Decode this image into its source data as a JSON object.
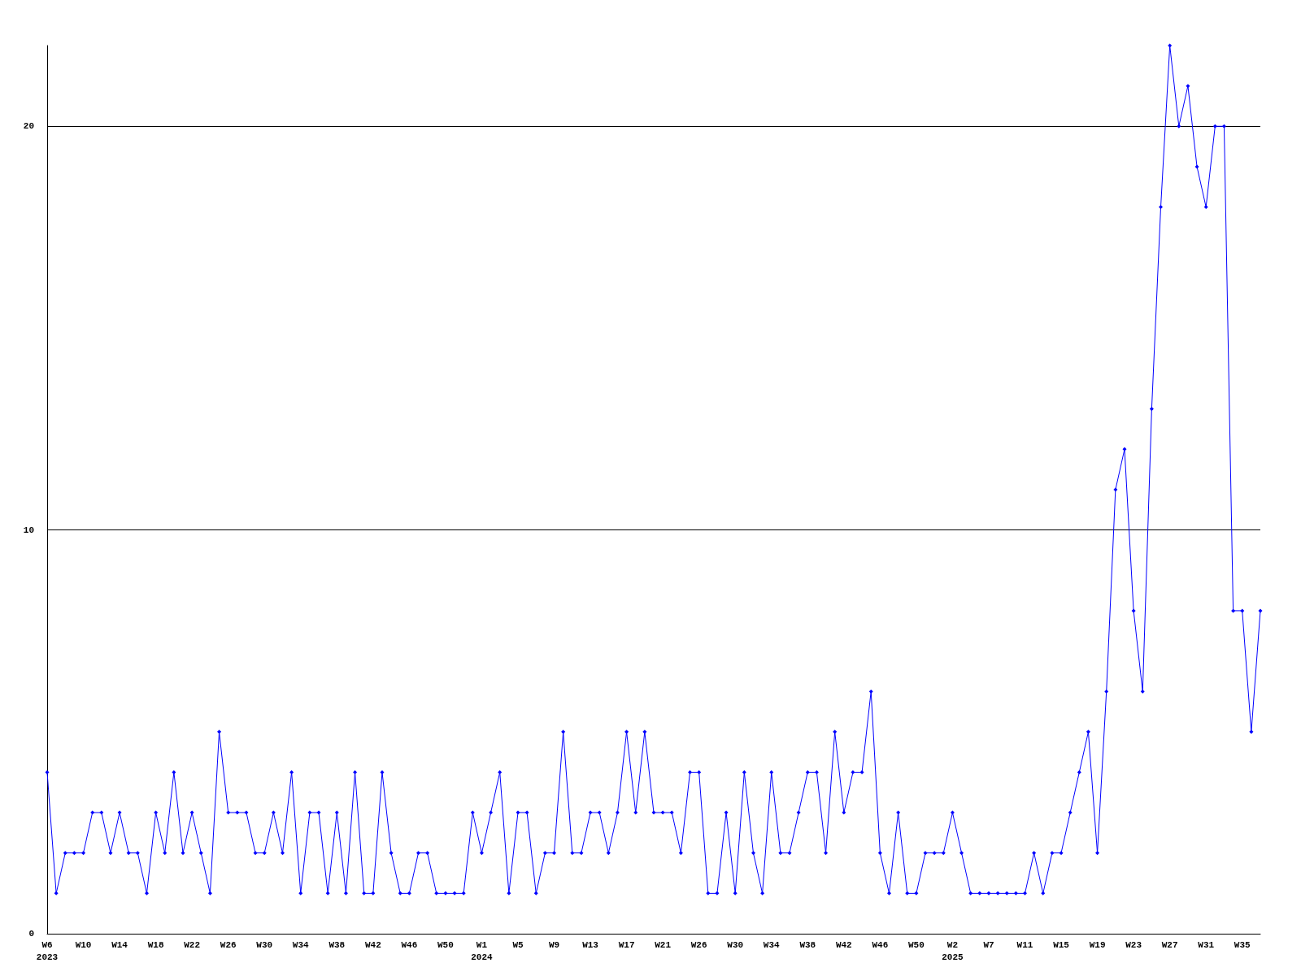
{
  "chart_data": {
    "type": "line",
    "categories": [
      "W6\n2023",
      null,
      null,
      null,
      "W10",
      null,
      null,
      null,
      "W14",
      null,
      null,
      null,
      "W18",
      null,
      null,
      null,
      "W22",
      null,
      null,
      null,
      "W26",
      null,
      null,
      null,
      "W30",
      null,
      null,
      null,
      "W34",
      null,
      null,
      null,
      "W38",
      null,
      null,
      null,
      "W42",
      null,
      null,
      null,
      "W46",
      null,
      null,
      null,
      "W50",
      null,
      null,
      null,
      "W1\n2024",
      null,
      null,
      null,
      "W5",
      null,
      null,
      null,
      "W9",
      null,
      null,
      null,
      "W13",
      null,
      null,
      null,
      "W17",
      null,
      null,
      null,
      "W21",
      null,
      null,
      null,
      "W26",
      null,
      null,
      null,
      "W30",
      null,
      null,
      null,
      "W34",
      null,
      null,
      null,
      "W38",
      null,
      null,
      null,
      "W42",
      null,
      null,
      null,
      "W46",
      null,
      null,
      null,
      "W50",
      null,
      null,
      null,
      "W2\n2025",
      null,
      null,
      null,
      "W7",
      null,
      null,
      null,
      "W11",
      null,
      null,
      null,
      "W15",
      null,
      null,
      null,
      "W19",
      null,
      null,
      null,
      "W23",
      null,
      null,
      null,
      "W27",
      null,
      null,
      null,
      "W31",
      null,
      null,
      null,
      "W35",
      null,
      null
    ],
    "series": [
      {
        "color": "#0000ff",
        "values": [
          4,
          1,
          2,
          2,
          2,
          3,
          3,
          2,
          3,
          2,
          2,
          1,
          3,
          2,
          4,
          2,
          3,
          2,
          1,
          5,
          3,
          3,
          3,
          2,
          2,
          3,
          2,
          4,
          1,
          3,
          3,
          1,
          3,
          1,
          4,
          1,
          1,
          4,
          2,
          1,
          1,
          2,
          2,
          1,
          1,
          1,
          1,
          3,
          2,
          3,
          4,
          1,
          3,
          3,
          1,
          2,
          2,
          5,
          2,
          2,
          3,
          3,
          2,
          3,
          5,
          3,
          5,
          3,
          3,
          3,
          2,
          4,
          4,
          1,
          1,
          3,
          1,
          4,
          2,
          1,
          4,
          2,
          2,
          3,
          4,
          4,
          2,
          5,
          3,
          4,
          4,
          6,
          2,
          1,
          3,
          1,
          1,
          2,
          2,
          2,
          3,
          2,
          1,
          1,
          1,
          1,
          1,
          1,
          1,
          2,
          1,
          2,
          2,
          3,
          4,
          5,
          2,
          6,
          11,
          12,
          8,
          6,
          13,
          18,
          22,
          20,
          21,
          19,
          18,
          20,
          20,
          8,
          8,
          5,
          8
        ]
      }
    ],
    "ylim": [
      0,
      22
    ],
    "yticks": [
      0,
      10,
      20
    ],
    "grid": "y",
    "marker": "diamond",
    "line_style": "solid"
  }
}
